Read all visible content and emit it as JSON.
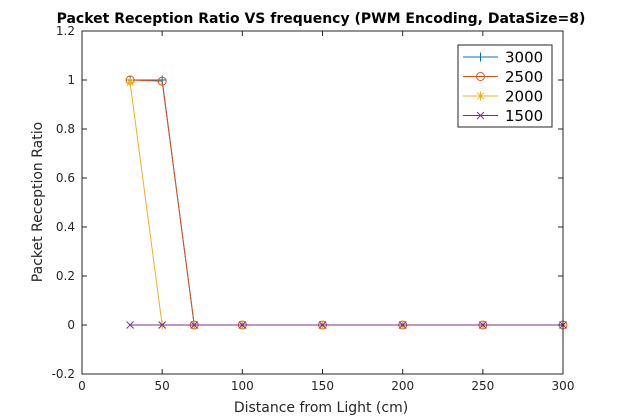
{
  "chart_data": {
    "type": "line",
    "title": "Packet Reception Ratio VS frequency (PWM Encoding, DataSize=8)",
    "xlabel": "Distance from Light (cm)",
    "ylabel": "Packet Reception Ratio",
    "xlim": [
      0,
      300
    ],
    "ylim": [
      -0.2,
      1.2
    ],
    "xticks": [
      0,
      50,
      100,
      150,
      200,
      250,
      300
    ],
    "yticks": [
      -0.2,
      0,
      0.2,
      0.4,
      0.6,
      0.8,
      1,
      1.2
    ],
    "xtick_labels": [
      "0",
      "50",
      "100",
      "150",
      "200",
      "250",
      "300"
    ],
    "ytick_labels": [
      "-0.2",
      "0",
      "0.2",
      "0.4",
      "0.6",
      "0.8",
      "1",
      "1.2"
    ],
    "grid": false,
    "legend_position": "top-right",
    "series": [
      {
        "name": "3000",
        "color": "#0072BD",
        "marker": "plus",
        "x": [
          30,
          50,
          70,
          100,
          150,
          200,
          250,
          300
        ],
        "y": [
          1,
          1,
          0,
          0,
          0,
          0,
          0,
          0
        ]
      },
      {
        "name": "2500",
        "color": "#D95319",
        "marker": "circle",
        "x": [
          30,
          50,
          70,
          100,
          150,
          200,
          250,
          300
        ],
        "y": [
          1,
          0.995,
          0,
          0,
          0,
          0,
          0,
          0
        ]
      },
      {
        "name": "2000",
        "color": "#EDB120",
        "marker": "asterisk",
        "x": [
          30,
          50,
          70,
          100,
          150,
          200,
          250,
          300
        ],
        "y": [
          0.99,
          0,
          0,
          0,
          0,
          0,
          0,
          0
        ]
      },
      {
        "name": "1500",
        "color": "#7E2F8E",
        "marker": "x",
        "x": [
          30,
          50,
          70,
          100,
          150,
          200,
          250,
          300
        ],
        "y": [
          0,
          0,
          0,
          0,
          0,
          0,
          0,
          0
        ]
      }
    ]
  }
}
